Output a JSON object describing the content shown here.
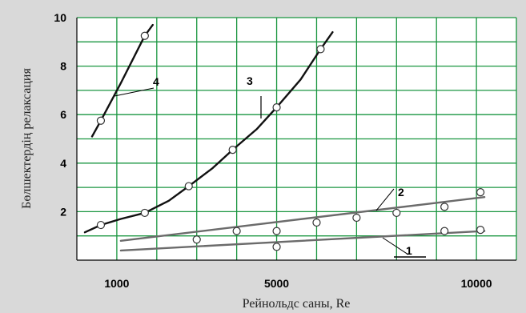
{
  "chart_data": {
    "type": "scatter",
    "xlabel": "Рейнольдс саны, Re",
    "ylabel": "Бөлшектердің релаксация",
    "xlim": [
      0,
      11000
    ],
    "ylim": [
      0,
      10
    ],
    "x_ticks": [
      {
        "value": 1000,
        "label": "1000"
      },
      {
        "value": 5000,
        "label": "5000"
      },
      {
        "value": 10000,
        "label": "10000"
      }
    ],
    "y_ticks": [
      {
        "value": 2,
        "label": "2"
      },
      {
        "value": 4,
        "label": "4"
      },
      {
        "value": 6,
        "label": "6"
      },
      {
        "value": 8,
        "label": "8"
      },
      {
        "value": 10,
        "label": "10"
      }
    ],
    "grid": true,
    "grid_color": "#1a9640",
    "series": [
      {
        "label": "1",
        "color": "#6b6b6b",
        "points": [
          {
            "x": 5000,
            "y": 0.55
          },
          {
            "x": 9200,
            "y": 1.2
          },
          {
            "x": 10100,
            "y": 1.25
          }
        ],
        "line": [
          {
            "x": 1100,
            "y": 0.4
          },
          {
            "x": 10200,
            "y": 1.2
          }
        ]
      },
      {
        "label": "2",
        "color": "#6b6b6b",
        "points": [
          {
            "x": 3000,
            "y": 0.85
          },
          {
            "x": 4000,
            "y": 1.2
          },
          {
            "x": 5000,
            "y": 1.2
          },
          {
            "x": 6000,
            "y": 1.55
          },
          {
            "x": 7000,
            "y": 1.75
          },
          {
            "x": 8000,
            "y": 1.95
          },
          {
            "x": 9200,
            "y": 2.2
          },
          {
            "x": 10100,
            "y": 2.8
          }
        ],
        "line": [
          {
            "x": 1100,
            "y": 0.8
          },
          {
            "x": 10200,
            "y": 2.6
          }
        ]
      },
      {
        "label": "3",
        "color": "#111111",
        "points": [
          {
            "x": 600,
            "y": 1.45
          },
          {
            "x": 1700,
            "y": 1.95
          },
          {
            "x": 2800,
            "y": 3.05
          },
          {
            "x": 3900,
            "y": 4.55
          },
          {
            "x": 5000,
            "y": 6.3
          },
          {
            "x": 6100,
            "y": 8.7
          }
        ],
        "line": [
          {
            "x": 200,
            "y": 1.15
          },
          {
            "x": 600,
            "y": 1.45
          },
          {
            "x": 1100,
            "y": 1.7
          },
          {
            "x": 1700,
            "y": 1.95
          },
          {
            "x": 2300,
            "y": 2.45
          },
          {
            "x": 2800,
            "y": 3.05
          },
          {
            "x": 3400,
            "y": 3.8
          },
          {
            "x": 3900,
            "y": 4.55
          },
          {
            "x": 4500,
            "y": 5.4
          },
          {
            "x": 5000,
            "y": 6.3
          },
          {
            "x": 5600,
            "y": 7.45
          },
          {
            "x": 6100,
            "y": 8.7
          },
          {
            "x": 6400,
            "y": 9.4
          }
        ]
      },
      {
        "label": "4",
        "color": "#111111",
        "points": [
          {
            "x": 600,
            "y": 5.75
          },
          {
            "x": 1700,
            "y": 9.25
          }
        ],
        "line": [
          {
            "x": 380,
            "y": 5.1
          },
          {
            "x": 600,
            "y": 5.75
          },
          {
            "x": 1100,
            "y": 7.3
          },
          {
            "x": 1700,
            "y": 9.25
          },
          {
            "x": 1900,
            "y": 9.7
          }
        ]
      }
    ]
  }
}
